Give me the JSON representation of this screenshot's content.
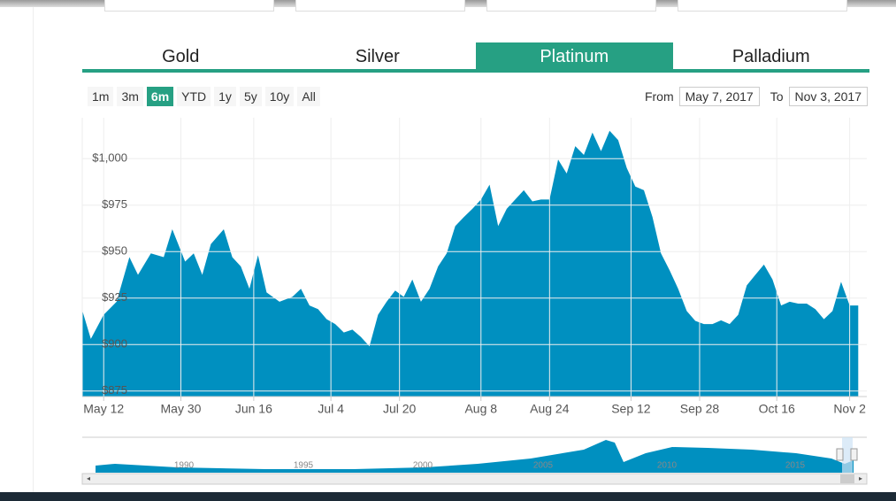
{
  "tabs": [
    "Gold",
    "Silver",
    "Platinum",
    "Palladium"
  ],
  "active_tab": 2,
  "ranges": [
    "1m",
    "3m",
    "6m",
    "YTD",
    "1y",
    "5y",
    "10y",
    "All"
  ],
  "active_range": 2,
  "from_label": "From",
  "from": "May 7, 2017",
  "to_label": "To",
  "to": "Nov 3, 2017",
  "navigator_labels": [
    "1990",
    "1995",
    "2000",
    "2005",
    "2010",
    "2015"
  ],
  "chart_data": {
    "type": "area",
    "color": "#0090c0",
    "grid": true,
    "x": [
      "May 7",
      "May 9",
      "May 12",
      "May 15",
      "May 18",
      "May 20",
      "May 23",
      "May 26",
      "May 28",
      "May 31",
      "Jun 2",
      "Jun 4",
      "Jun 6",
      "Jun 9",
      "Jun 11",
      "Jun 13",
      "Jun 15",
      "Jun 17",
      "Jun 19",
      "Jun 22",
      "Jun 25",
      "Jun 27",
      "Jun 29",
      "Jul 1",
      "Jul 3",
      "Jul 5",
      "Jul 7",
      "Jul 9",
      "Jul 11",
      "Jul 13",
      "Jul 15",
      "Jul 17",
      "Jul 19",
      "Jul 21",
      "Jul 23",
      "Jul 25",
      "Jul 27",
      "Jul 29",
      "Jul 31",
      "Aug 2",
      "Aug 4",
      "Aug 6",
      "Aug 8",
      "Aug 10",
      "Aug 12",
      "Aug 14",
      "Aug 16",
      "Aug 18",
      "Aug 20",
      "Aug 22",
      "Aug 24",
      "Aug 26",
      "Aug 28",
      "Aug 30",
      "Sep 1",
      "Sep 3",
      "Sep 5",
      "Sep 7",
      "Sep 9",
      "Sep 11",
      "Sep 13",
      "Sep 15",
      "Sep 17",
      "Sep 19",
      "Sep 21",
      "Sep 23",
      "Sep 25",
      "Sep 27",
      "Sep 29",
      "Oct 1",
      "Oct 3",
      "Oct 5",
      "Oct 7",
      "Oct 9",
      "Oct 11",
      "Oct 13",
      "Oct 15",
      "Oct 17",
      "Oct 19",
      "Oct 21",
      "Oct 23",
      "Oct 25",
      "Oct 27",
      "Oct 29",
      "Oct 31",
      "Nov 2",
      "Nov 4"
    ],
    "values": [
      918.4,
      903,
      916,
      923,
      947,
      937.5,
      949,
      947,
      962,
      944.6,
      949,
      937.5,
      954,
      962,
      947,
      942,
      930,
      948,
      928,
      923,
      925.6,
      930,
      921,
      919,
      913.6,
      911,
      906.5,
      908,
      904,
      899,
      916,
      923,
      929,
      925.6,
      935,
      923,
      930,
      942,
      949,
      963.7,
      968.5,
      973,
      978,
      986,
      963.7,
      973,
      978,
      983,
      977,
      978,
      978,
      999.5,
      992,
      1006.7,
      1002,
      1014,
      1004,
      1015,
      1010,
      995,
      985,
      983,
      968.5,
      949,
      940,
      930,
      918,
      912.7,
      911,
      911,
      913,
      911,
      916,
      931.8,
      937.5,
      943,
      935,
      921,
      923,
      922,
      922,
      919,
      913.6,
      918,
      933.7,
      921,
      921
    ],
    "xlim": [
      "May 7",
      "Nov 6"
    ],
    "xticks": [
      "May 12",
      "May 30",
      "Jun 16",
      "Jul 4",
      "Jul 20",
      "Aug 8",
      "Aug 24",
      "Sep 12",
      "Sep 28",
      "Oct 16",
      "Nov 2"
    ],
    "ylim": [
      872,
      1022
    ],
    "yticks": [
      {
        "value": 875,
        "label": "$875"
      },
      {
        "value": 900,
        "label": "$900"
      },
      {
        "value": 925,
        "label": "$925"
      },
      {
        "value": 950,
        "label": "$950"
      },
      {
        "value": 975,
        "label": "$975"
      },
      {
        "value": 1000,
        "label": "$1,000"
      }
    ]
  }
}
